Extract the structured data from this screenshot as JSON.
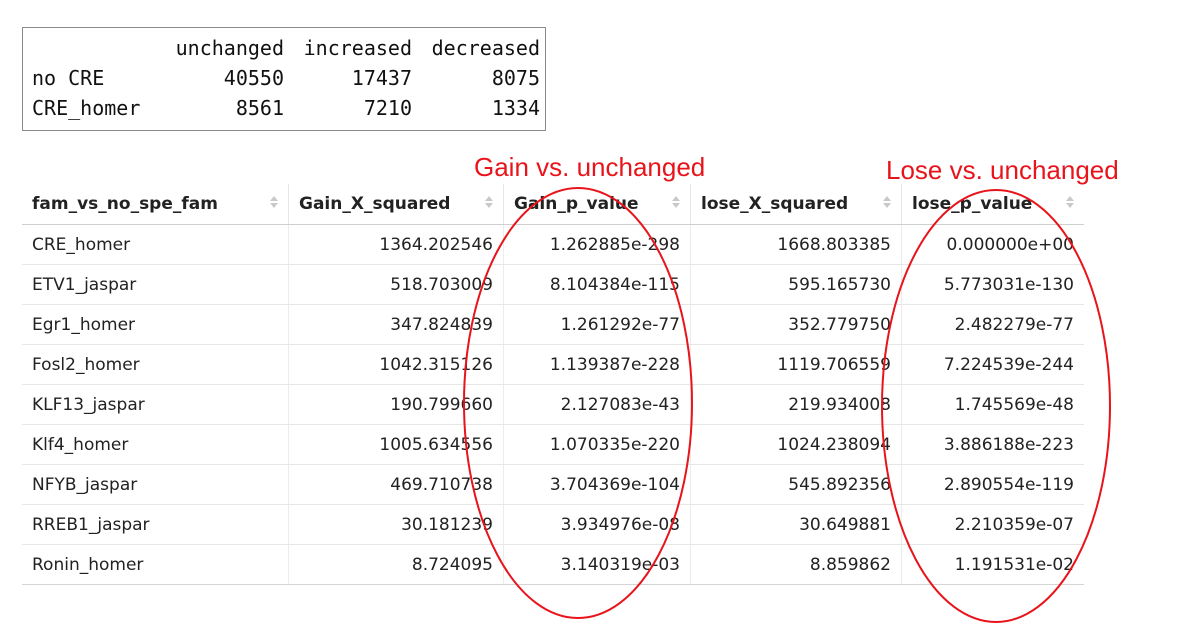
{
  "console": {
    "headers": [
      "",
      "unchanged",
      "increased",
      "decreased"
    ],
    "rows": [
      {
        "name": "no CRE",
        "values": [
          "40550",
          "17437",
          "8075"
        ]
      },
      {
        "name": "CRE_homer",
        "values": [
          "8561",
          "7210",
          "1334"
        ]
      }
    ]
  },
  "annotations": {
    "gain": "Gain vs. unchanged",
    "lose": "Lose vs. unchanged",
    "color": "#e8141b"
  },
  "table": {
    "columns": [
      "fam_vs_no_spe_fam",
      "Gain_X_squared",
      "Gain_p_value",
      "lose_X_squared",
      "lose_p_value"
    ],
    "rows": [
      [
        "CRE_homer",
        "1364.202546",
        "1.262885e-298",
        "1668.803385",
        "0.000000e+00"
      ],
      [
        "ETV1_jaspar",
        "518.703009",
        "8.104384e-115",
        "595.165730",
        "5.773031e-130"
      ],
      [
        "Egr1_homer",
        "347.824839",
        "1.261292e-77",
        "352.779750",
        "2.482279e-77"
      ],
      [
        "Fosl2_homer",
        "1042.315126",
        "1.139387e-228",
        "1119.706559",
        "7.224539e-244"
      ],
      [
        "KLF13_jaspar",
        "190.799660",
        "2.127083e-43",
        "219.934008",
        "1.745569e-48"
      ],
      [
        "Klf4_homer",
        "1005.634556",
        "1.070335e-220",
        "1024.238094",
        "3.886188e-223"
      ],
      [
        "NFYB_jaspar",
        "469.710738",
        "3.704369e-104",
        "545.892356",
        "2.890554e-119"
      ],
      [
        "RREB1_jaspar",
        "30.181239",
        "3.934976e-08",
        "30.649881",
        "2.210359e-07"
      ],
      [
        "Ronin_homer",
        "8.724095",
        "3.140319e-03",
        "8.859862",
        "1.191531e-02"
      ]
    ]
  },
  "icons": {
    "sort": "sort-arrows-icon"
  }
}
